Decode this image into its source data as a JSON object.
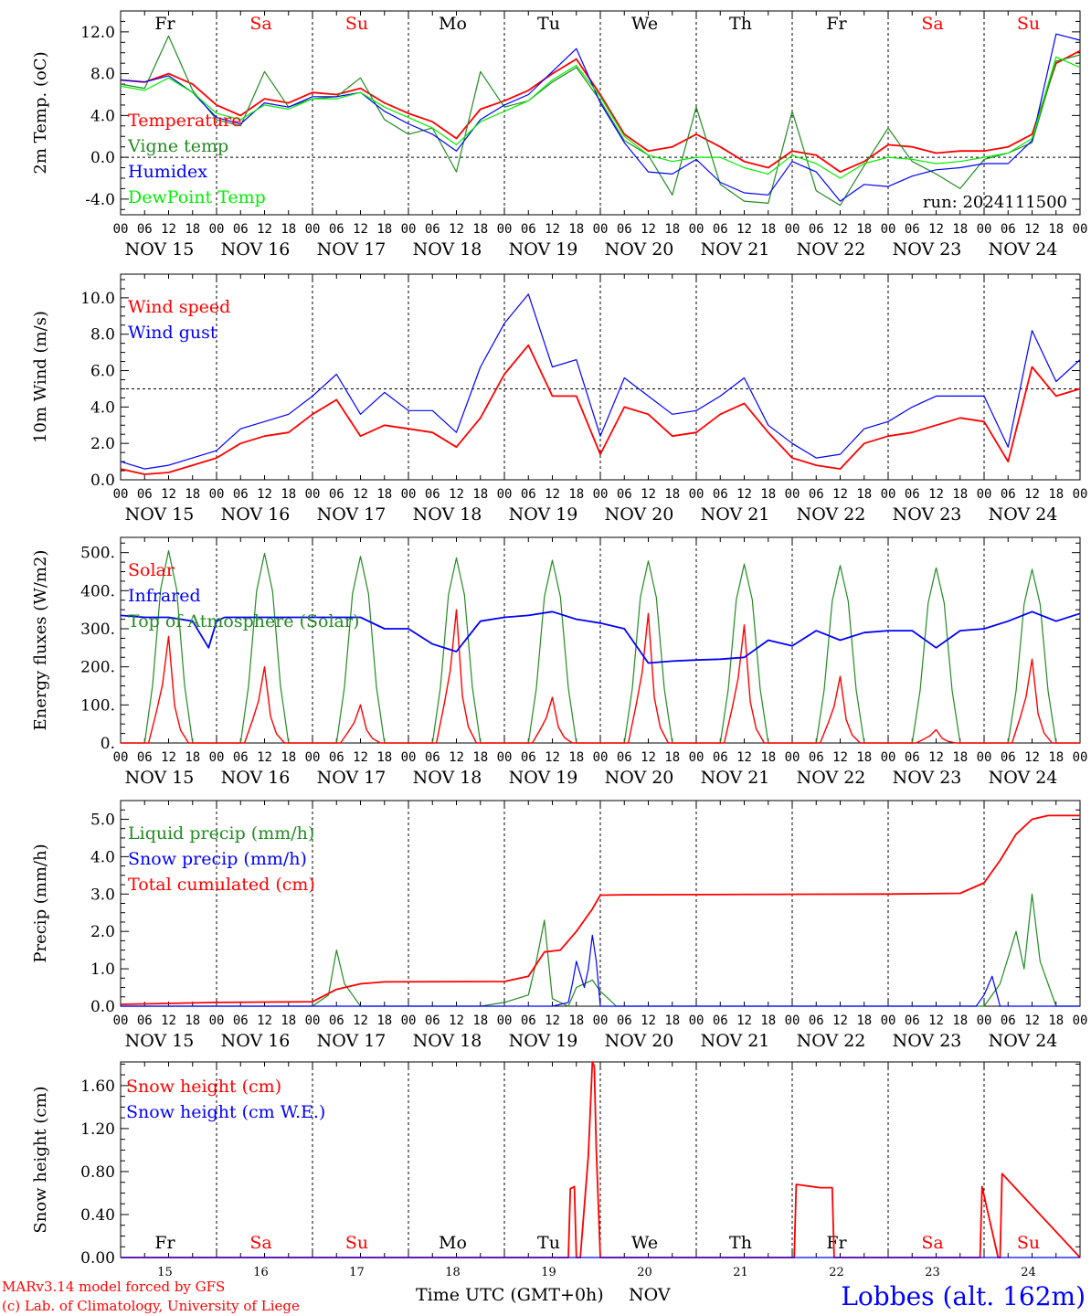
{
  "footer": {
    "credit_line1": "MARv3.14 model forced by GFS",
    "credit_line2": "(c) Lab. of Climatology, University of Liege",
    "axis_title": "Time UTC (GMT+0h)",
    "month": "NOV",
    "station": "Lobbes (alt. 162m)"
  },
  "colors": {
    "red": "#ff0000",
    "green": "#228b22",
    "blue": "#0000ff",
    "lightgreen": "#00ee00",
    "weekend": "#ff0000",
    "weekday": "#000000"
  },
  "chart_data": [
    {
      "type": "line",
      "ylabel": "2m Temp. (oC)",
      "ylim": [
        -5.5,
        14
      ],
      "yticks": [
        -4.0,
        0.0,
        4.0,
        8.0,
        12.0
      ],
      "ytick_labels": [
        "-4.0",
        "0.0",
        "4.0",
        "8.0",
        "12.0"
      ],
      "ref_line": 0,
      "weekdays": [
        "Fr",
        "Sa",
        "Su",
        "Mo",
        "Tu",
        "We",
        "Th",
        "Fr",
        "Sa",
        "Su"
      ],
      "day_labels": [
        "NOV 15",
        "NOV 16",
        "NOV 17",
        "NOV 18",
        "NOV 19",
        "NOV 20",
        "NOV 21",
        "NOV 22",
        "NOV 23",
        "NOV 24"
      ],
      "hour_labels": [
        "00",
        "06",
        "12",
        "18"
      ],
      "annotation": "run: 2024111500",
      "x_hours": [
        0,
        6,
        12,
        18,
        24,
        30,
        36,
        42,
        48,
        54,
        60,
        66,
        72,
        78,
        84,
        90,
        96,
        102,
        108,
        114,
        120,
        126,
        132,
        138,
        144,
        150,
        156,
        162,
        168,
        174,
        180,
        186,
        192,
        198,
        204,
        210,
        216,
        222,
        228,
        234,
        240
      ],
      "series": [
        {
          "name": "Temperature",
          "color": "red",
          "values": [
            7.4,
            7.2,
            8.0,
            7.0,
            5.0,
            4.0,
            5.6,
            5.2,
            6.2,
            6.0,
            6.6,
            5.2,
            4.2,
            3.4,
            1.8,
            4.6,
            5.4,
            6.4,
            8.0,
            9.4,
            6.0,
            2.2,
            0.6,
            1.0,
            2.2,
            1.0,
            -0.4,
            -1.0,
            0.6,
            0.2,
            -1.4,
            -0.4,
            1.2,
            1.0,
            0.4,
            0.6,
            0.6,
            1.0,
            2.2,
            9.0,
            10.2
          ]
        },
        {
          "name": "Vigne temp",
          "color": "green",
          "values": [
            7.0,
            6.6,
            11.6,
            6.4,
            3.6,
            3.0,
            8.2,
            4.8,
            5.6,
            5.8,
            7.6,
            3.6,
            2.2,
            2.8,
            -1.4,
            8.2,
            4.8,
            5.4,
            7.2,
            8.6,
            5.4,
            1.6,
            0.2,
            -3.6,
            4.8,
            -2.6,
            -4.2,
            -4.4,
            4.4,
            -3.2,
            -4.6,
            -0.8,
            2.8,
            -0.4,
            -1.6,
            -3.0,
            -0.2,
            0.4,
            1.4,
            9.2,
            9.8
          ]
        },
        {
          "name": "Humidex",
          "color": "blue",
          "values": [
            7.4,
            7.2,
            7.8,
            6.2,
            3.8,
            3.2,
            5.2,
            4.8,
            5.8,
            5.8,
            6.2,
            4.4,
            3.2,
            2.2,
            0.6,
            3.6,
            5.0,
            6.0,
            8.2,
            10.4,
            5.2,
            1.4,
            -1.4,
            -1.6,
            -0.2,
            -2.4,
            -3.4,
            -3.6,
            -0.4,
            -1.4,
            -4.2,
            -2.6,
            -2.8,
            -1.8,
            -1.2,
            -1.0,
            -0.6,
            -0.6,
            1.6,
            11.8,
            11.2
          ]
        },
        {
          "name": "DewPoint Temp",
          "color": "lightgreen",
          "values": [
            6.8,
            6.4,
            7.6,
            6.2,
            4.2,
            3.6,
            5.0,
            4.6,
            5.6,
            5.6,
            6.2,
            4.8,
            3.8,
            2.8,
            1.2,
            3.4,
            4.4,
            5.4,
            7.4,
            8.8,
            5.8,
            2.0,
            0.2,
            -0.4,
            0.0,
            0.0,
            -1.0,
            -1.6,
            0.2,
            -0.6,
            -2.0,
            -0.6,
            0.0,
            -0.2,
            -0.6,
            -0.4,
            0.0,
            0.4,
            1.8,
            9.6,
            8.6
          ]
        }
      ]
    },
    {
      "type": "line",
      "ylabel": "10m Wind (m/s)",
      "ylim": [
        0,
        11.3
      ],
      "yticks": [
        0,
        2,
        4,
        6,
        8,
        10
      ],
      "ytick_labels": [
        "0.0",
        "2.0",
        "4.0",
        "6.0",
        "8.0",
        "10.0"
      ],
      "ref_line": 5,
      "weekdays": [],
      "day_labels": [
        "NOV 15",
        "NOV 16",
        "NOV 17",
        "NOV 18",
        "NOV 19",
        "NOV 20",
        "NOV 21",
        "NOV 22",
        "NOV 23",
        "NOV 24"
      ],
      "hour_labels": [
        "00",
        "06",
        "12",
        "18"
      ],
      "annotation": "",
      "x_hours": [
        0,
        6,
        12,
        18,
        24,
        30,
        36,
        42,
        48,
        54,
        60,
        66,
        72,
        78,
        84,
        90,
        96,
        102,
        108,
        114,
        120,
        126,
        132,
        138,
        144,
        150,
        156,
        162,
        168,
        174,
        180,
        186,
        192,
        198,
        204,
        210,
        216,
        222,
        228,
        234,
        240
      ],
      "series": [
        {
          "name": "Wind speed",
          "color": "red",
          "values": [
            0.6,
            0.3,
            0.4,
            0.8,
            1.2,
            2.0,
            2.4,
            2.6,
            3.6,
            4.4,
            2.4,
            3.0,
            2.8,
            2.6,
            1.8,
            3.4,
            5.8,
            7.4,
            4.6,
            4.6,
            1.4,
            4.0,
            3.6,
            2.4,
            2.6,
            3.6,
            4.2,
            2.6,
            1.2,
            0.8,
            0.6,
            2.0,
            2.4,
            2.6,
            3.0,
            3.4,
            3.2,
            1.0,
            6.2,
            4.6,
            5.0
          ]
        },
        {
          "name": "Wind gust",
          "color": "blue",
          "values": [
            1.0,
            0.6,
            0.8,
            1.2,
            1.6,
            2.8,
            3.2,
            3.6,
            4.6,
            5.8,
            3.6,
            4.8,
            3.8,
            3.8,
            2.6,
            6.2,
            8.6,
            10.2,
            6.2,
            6.6,
            2.4,
            5.6,
            4.6,
            3.6,
            3.8,
            4.6,
            5.6,
            3.0,
            2.0,
            1.2,
            1.4,
            2.8,
            3.2,
            4.0,
            4.6,
            4.6,
            4.6,
            1.8,
            8.2,
            5.4,
            6.6
          ]
        }
      ]
    },
    {
      "type": "line",
      "ylabel": "Energy fluxes (W/m2)",
      "ylim": [
        0,
        540
      ],
      "yticks": [
        0,
        100,
        200,
        300,
        400,
        500
      ],
      "ytick_labels": [
        "0.",
        "100.",
        "200.",
        "300.",
        "400.",
        "500."
      ],
      "weekdays": [],
      "day_labels": [
        "NOV 15",
        "NOV 16",
        "NOV 17",
        "NOV 18",
        "NOV 19",
        "NOV 20",
        "NOV 21",
        "NOV 22",
        "NOV 23",
        "NOV 24"
      ],
      "hour_labels": [
        "00",
        "06",
        "12",
        "18"
      ],
      "annotation": "",
      "solar_peaks": [
        280,
        200,
        100,
        350,
        120,
        340,
        310,
        175,
        35,
        220
      ],
      "toa_peaks": [
        505,
        498,
        490,
        486,
        480,
        478,
        470,
        466,
        460,
        456
      ],
      "infrared": {
        "x_hours": [
          0,
          6,
          12,
          18,
          22,
          24,
          26,
          30,
          36,
          42,
          48,
          54,
          60,
          66,
          72,
          78,
          84,
          90,
          96,
          102,
          108,
          114,
          120,
          126,
          132,
          138,
          144,
          150,
          156,
          162,
          168,
          174,
          180,
          186,
          192,
          198,
          204,
          210,
          216,
          222,
          228,
          234,
          240
        ],
        "values": [
          335,
          330,
          330,
          320,
          250,
          320,
          330,
          330,
          330,
          330,
          330,
          330,
          330,
          300,
          300,
          260,
          240,
          320,
          330,
          335,
          345,
          325,
          315,
          300,
          210,
          215,
          218,
          220,
          225,
          270,
          255,
          295,
          270,
          290,
          295,
          295,
          250,
          295,
          300,
          320,
          345,
          320,
          340
        ]
      },
      "series": [
        {
          "name": "Solar",
          "color": "red"
        },
        {
          "name": "Infrared",
          "color": "blue"
        },
        {
          "name": "Top of Atmosphere (Solar)",
          "color": "green"
        }
      ]
    },
    {
      "type": "line",
      "ylabel": "Precip (mm/h)",
      "ylim": [
        0,
        5.5
      ],
      "yticks": [
        0,
        1,
        2,
        3,
        4,
        5
      ],
      "ytick_labels": [
        "0.0",
        "1.0",
        "2.0",
        "3.0",
        "4.0",
        "5.0"
      ],
      "weekdays": [],
      "day_labels": [
        "NOV 15",
        "NOV 16",
        "NOV 17",
        "NOV 18",
        "NOV 19",
        "NOV 20",
        "NOV 21",
        "NOV 22",
        "NOV 23",
        "NOV 24"
      ],
      "hour_labels": [
        "00",
        "06",
        "12",
        "18"
      ],
      "annotation": "",
      "series": [
        {
          "name": "Liquid precip (mm/h)",
          "color": "green",
          "x_hours": [
            0,
            12,
            36,
            48,
            52,
            54,
            56,
            58,
            60,
            66,
            72,
            90,
            96,
            102,
            104,
            106,
            108,
            112,
            114,
            118,
            120,
            122,
            124,
            126,
            132,
            216,
            220,
            222,
            224,
            226,
            228,
            230,
            232,
            234,
            240
          ],
          "values": [
            0,
            0,
            0,
            0,
            0.3,
            1.5,
            0.6,
            0.3,
            0,
            0,
            0,
            0,
            0.1,
            0.3,
            1.2,
            2.3,
            0.2,
            0,
            0.5,
            0.7,
            0.4,
            0.2,
            0,
            0,
            0,
            0,
            0.6,
            1.3,
            2.0,
            1.0,
            3.0,
            1.2,
            0.6,
            0,
            0
          ]
        },
        {
          "name": "Snow precip (mm/h)",
          "color": "blue",
          "x_hours": [
            0,
            108,
            112,
            113,
            114,
            116,
            117,
            118,
            119,
            120,
            126,
            214,
            216,
            218,
            220,
            240
          ],
          "values": [
            0,
            0,
            0.1,
            0.6,
            1.2,
            0.5,
            1.0,
            1.9,
            1.2,
            0,
            0,
            0,
            0.3,
            0.8,
            0,
            0
          ]
        },
        {
          "name": "Total cumulated (cm)",
          "color": "red",
          "x_hours": [
            0,
            24,
            48,
            54,
            60,
            66,
            96,
            102,
            106,
            110,
            114,
            118,
            120,
            126,
            192,
            210,
            216,
            220,
            224,
            228,
            232,
            240
          ],
          "values": [
            0.05,
            0.1,
            0.12,
            0.45,
            0.6,
            0.65,
            0.66,
            0.8,
            1.45,
            1.5,
            2.0,
            2.6,
            2.97,
            2.98,
            3.0,
            3.02,
            3.3,
            3.9,
            4.6,
            5.0,
            5.1,
            5.1
          ]
        }
      ]
    },
    {
      "type": "line",
      "ylabel": "Snow height (cm)",
      "ylim": [
        0,
        1.82
      ],
      "yticks": [
        0,
        0.4,
        0.8,
        1.2,
        1.6
      ],
      "ytick_labels": [
        "0.00",
        "0.40",
        "0.80",
        "1.20",
        "1.60"
      ],
      "weekdays": [
        "Fr",
        "Sa",
        "Su",
        "Mo",
        "Tu",
        "We",
        "Th",
        "Fr",
        "Sa",
        "Su"
      ],
      "day_numbers": [
        "15",
        "16",
        "17",
        "18",
        "19",
        "20",
        "21",
        "22",
        "23",
        "24"
      ],
      "annotation": "",
      "series": [
        {
          "name": "Snow height (cm)",
          "color": "red",
          "x_hours": [
            0,
            112,
            112.5,
            113.5,
            114,
            114.5,
            115,
            117,
            118,
            118.5,
            119,
            120,
            121,
            121.5,
            168,
            168.5,
            169,
            175,
            178,
            178.5,
            214.5,
            215,
            215.5,
            219.5,
            220,
            220.5,
            240
          ],
          "values": [
            0,
            0,
            0.64,
            0.66,
            0,
            0,
            0,
            0.95,
            1.82,
            1.78,
            1.0,
            0,
            0,
            0,
            0,
            0,
            0.68,
            0.65,
            0.65,
            0,
            0,
            0,
            0.66,
            0,
            0,
            0.78,
            0
          ]
        },
        {
          "name": "Snow height (cm W.E.)",
          "color": "blue",
          "x_hours": [
            0,
            240
          ],
          "values": [
            0,
            0
          ]
        }
      ]
    }
  ]
}
